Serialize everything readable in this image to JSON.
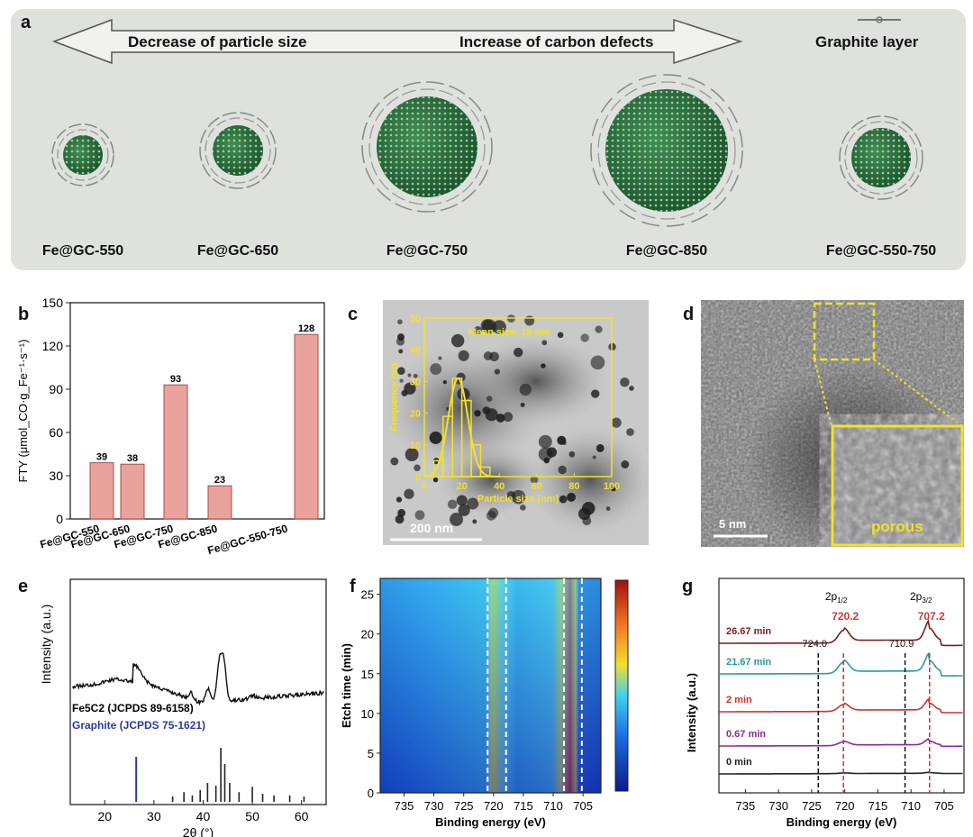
{
  "panels": {
    "a": "a",
    "b": "b",
    "c": "c",
    "d": "d",
    "e": "e",
    "f": "f",
    "g": "g"
  },
  "panel_a": {
    "arrow_left": "Decrease of particle size",
    "arrow_right": "Increase of carbon defects",
    "legend": "Graphite layer",
    "samples": [
      "Fe@GC-550",
      "Fe@GC-650",
      "Fe@GC-750",
      "Fe@GC-850",
      "Fe@GC-550-750"
    ]
  },
  "chart_data": [
    {
      "type": "bar",
      "panel": "b",
      "categories": [
        "Fe@GC-550",
        "Fe@GC-650",
        "Fe@GC-750",
        "Fe@GC-850",
        "Fe@GC-550-750"
      ],
      "values": [
        39,
        38,
        93,
        23,
        128
      ],
      "ylabel": "FTY (μmol_CO·g_Fe⁻¹·s⁻¹)",
      "ylim": [
        0,
        150
      ],
      "yticks": [
        0,
        30,
        60,
        90,
        120,
        150
      ],
      "color": "#e9a39c"
    },
    {
      "type": "bar",
      "panel": "c-inset",
      "title": "Mean size: 18 nm",
      "xlabel": "Particle size (nm)",
      "ylabel": "Frequency (%)",
      "xticks": [
        0,
        20,
        40,
        60,
        80,
        100
      ],
      "yticks": [
        0,
        10,
        20,
        30,
        40,
        50
      ],
      "x": [
        7.5,
        12.5,
        17.5,
        22.5,
        27.5,
        32.5
      ],
      "values": [
        5,
        19,
        31,
        24,
        10,
        3
      ],
      "fit_mean": 18,
      "color": "#f2e22a"
    },
    {
      "type": "line",
      "panel": "e",
      "xlabel": "2θ (°)",
      "ylabel": "Intensity (a.u.)",
      "xticks": [
        20,
        30,
        40,
        50,
        60
      ],
      "xlim": [
        13,
        65
      ],
      "reference_1": "Fe5C2 (JCPDS 89-6158)",
      "reference_2": "Graphite (JCPDS 75-1621)",
      "graphite_peak": 26.4,
      "fe5c2_sticks": [
        {
          "x": 33.8,
          "h": 0.1
        },
        {
          "x": 36.1,
          "h": 0.18
        },
        {
          "x": 37.8,
          "h": 0.12
        },
        {
          "x": 39.4,
          "h": 0.22
        },
        {
          "x": 40.9,
          "h": 0.35
        },
        {
          "x": 42.6,
          "h": 0.3
        },
        {
          "x": 43.6,
          "h": 1.0
        },
        {
          "x": 44.4,
          "h": 0.7
        },
        {
          "x": 45.4,
          "h": 0.35
        },
        {
          "x": 47.3,
          "h": 0.18
        },
        {
          "x": 50.0,
          "h": 0.28
        },
        {
          "x": 52.1,
          "h": 0.15
        },
        {
          "x": 54.4,
          "h": 0.12
        },
        {
          "x": 57.6,
          "h": 0.12
        },
        {
          "x": 60.5,
          "h": 0.1
        }
      ]
    },
    {
      "type": "heatmap",
      "panel": "f",
      "xlabel": "Binding energy (eV)",
      "ylabel": "Etch time (min)",
      "xticks": [
        735,
        730,
        725,
        720,
        715,
        710,
        705
      ],
      "xlim": [
        739,
        702
      ],
      "yticks": [
        0,
        5,
        10,
        15,
        20,
        25
      ],
      "ylim": [
        0,
        27
      ],
      "dashed_lines": [
        721,
        717.9,
        708.2,
        705.2
      ]
    },
    {
      "type": "line",
      "panel": "g",
      "xlabel": "Binding energy (eV)",
      "ylabel": "Intensity (a.u.)",
      "xticks": [
        735,
        730,
        725,
        720,
        715,
        710,
        705
      ],
      "xlim": [
        739,
        702
      ],
      "annotations": [
        {
          "text": "2p1/2",
          "x": 721.3
        },
        {
          "text": "2p3/2",
          "x": 708.5
        }
      ],
      "peak_labels": [
        {
          "text": "724.0",
          "x": 724.0,
          "color": "#111111"
        },
        {
          "text": "720.2",
          "x": 720.2,
          "color": "#c83c3c"
        },
        {
          "text": "710.9",
          "x": 710.9,
          "color": "#111111"
        },
        {
          "text": "707.2",
          "x": 707.2,
          "color": "#c83c3c"
        }
      ],
      "series": [
        {
          "name": "26.67 min",
          "color": "#7a1e1e",
          "offset": 4,
          "amp": 1.0
        },
        {
          "name": "21.67 min",
          "color": "#2a9a9a",
          "offset": 3,
          "amp": 0.9
        },
        {
          "name": "2 min",
          "color": "#d03030",
          "offset": 2,
          "amp": 0.55
        },
        {
          "name": "0.67 min",
          "color": "#8a2a9a",
          "offset": 1,
          "amp": 0.3
        },
        {
          "name": "0 min",
          "color": "#222222",
          "offset": 0,
          "amp": 0.05
        }
      ]
    }
  ],
  "tem_c_scale": "200 nm",
  "tem_d_scale": "5 nm",
  "tem_d_inset_label": "porous",
  "colors": {
    "bar": "#e9a39c",
    "highlight": "#f2e22a",
    "red_dash": "#d03030"
  }
}
